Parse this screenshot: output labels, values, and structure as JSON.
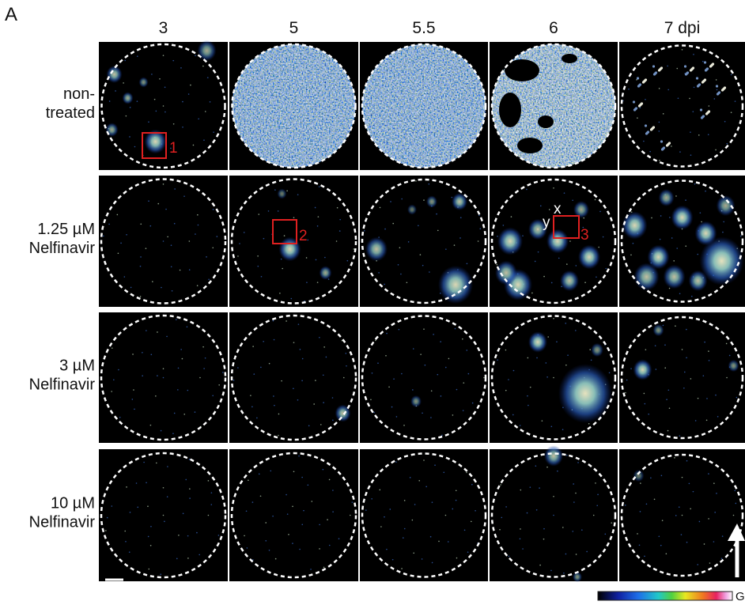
{
  "panel_label": "A",
  "columns": [
    "3",
    "5",
    "5.5",
    "6",
    "7 dpi"
  ],
  "rows": [
    {
      "label_lines": [
        "non-",
        "treated"
      ]
    },
    {
      "label_lines": [
        "1.25 µM",
        "Nelfinavir"
      ]
    },
    {
      "label_lines": [
        "3 µM",
        "Nelfinavir"
      ]
    },
    {
      "label_lines": [
        "10 µM",
        "Nelfinavir"
      ]
    }
  ],
  "annotations": {
    "boxes": [
      "1",
      "2",
      "3"
    ],
    "axis_x": "x",
    "axis_y": "y"
  },
  "colorbar_label": "GFP"
}
